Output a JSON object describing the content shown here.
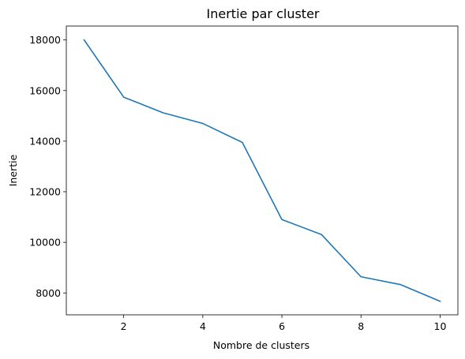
{
  "chart_data": {
    "type": "line",
    "title": "Inertie par cluster",
    "xlabel": "Nombre de clusters",
    "ylabel": "Inertie",
    "xlim": [
      0.55,
      10.45
    ],
    "ylim": [
      7135,
      18550
    ],
    "x_ticks": [
      2,
      4,
      6,
      8,
      10
    ],
    "y_ticks": [
      8000,
      10000,
      12000,
      14000,
      16000,
      18000
    ],
    "grid": false,
    "legend": "none",
    "series": [
      {
        "color": "#1f77b4",
        "x": [
          1,
          2,
          3,
          4,
          5,
          6,
          7,
          8,
          9,
          10
        ],
        "y": [
          18000,
          15740,
          15120,
          14700,
          13950,
          10900,
          10310,
          8640,
          8330,
          7670
        ]
      }
    ]
  }
}
